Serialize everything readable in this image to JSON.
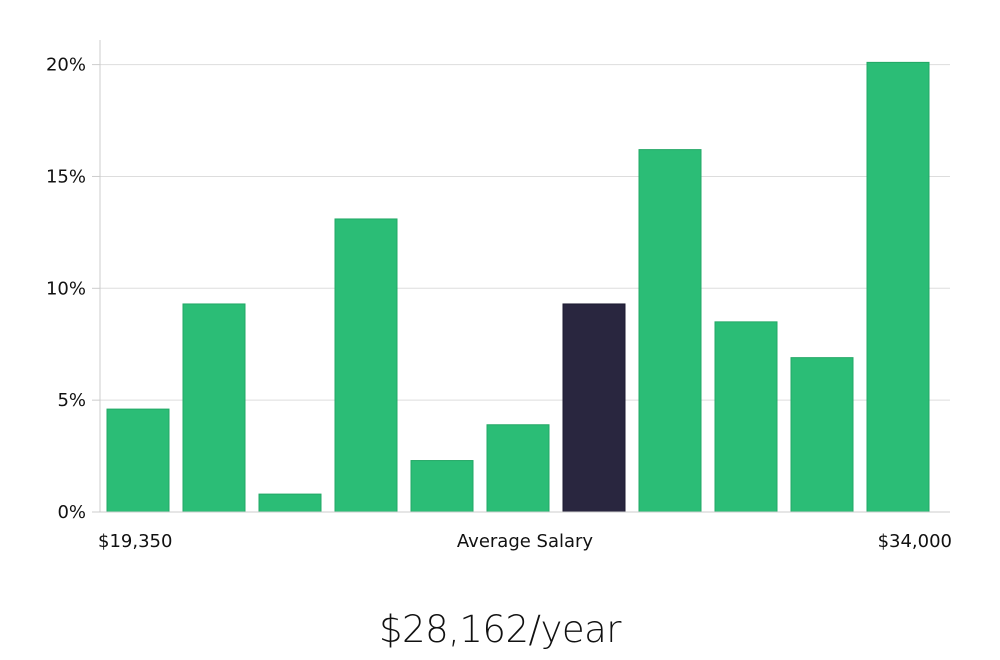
{
  "chart_data": {
    "type": "bar",
    "title": "",
    "xlabel": "Average Salary",
    "ylabel": "",
    "x_range_labels": {
      "min": "$19,350",
      "max": "$34,000"
    },
    "yticks": [
      {
        "value": 0,
        "label": "0%"
      },
      {
        "value": 5,
        "label": "5%"
      },
      {
        "value": 10,
        "label": "10%"
      },
      {
        "value": 15,
        "label": "15%"
      },
      {
        "value": 20,
        "label": "20%"
      }
    ],
    "ylim": [
      0,
      21.1
    ],
    "grid": true,
    "values": [
      4.6,
      9.3,
      0.8,
      13.1,
      2.3,
      3.9,
      9.3,
      16.2,
      8.5,
      6.9,
      20.1
    ],
    "highlight_index": 6,
    "colors": {
      "bar": "#2bbd76",
      "bar_edge": "#22a865",
      "highlight": "#29263f",
      "grid": "#dddddd",
      "axis": "#cccccc",
      "text": "#111111"
    }
  },
  "salary": {
    "label": "$28,162/year"
  }
}
